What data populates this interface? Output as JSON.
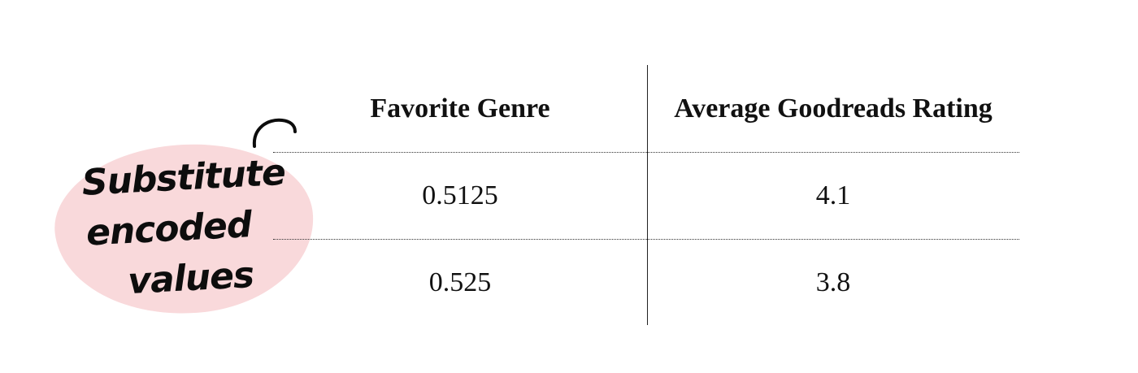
{
  "annotation": {
    "lines": [
      "Substitute",
      "encoded",
      "values"
    ],
    "bubble_color": "#f9d9db"
  },
  "table": {
    "headers": [
      "Favorite Genre",
      "Average Goodreads Rating"
    ],
    "rows": [
      [
        "0.5125",
        "4.1"
      ],
      [
        "0.525",
        "3.8"
      ]
    ]
  }
}
